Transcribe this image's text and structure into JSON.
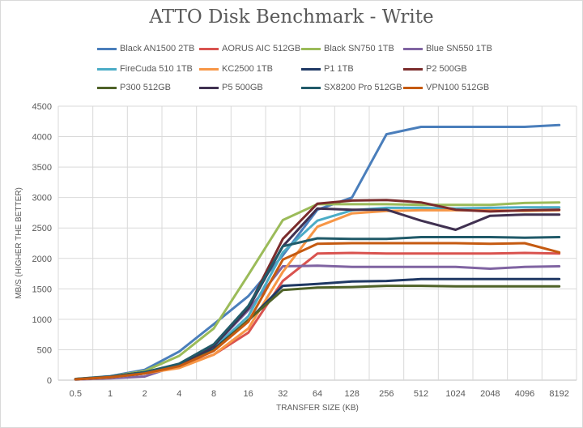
{
  "chart_data": {
    "type": "line",
    "title": "ATTO Disk Benchmark - Write",
    "xlabel": "TRANSFER SIZE (KB)",
    "ylabel": "MB/S (HIGHER THE BETTER)",
    "ylim": [
      0,
      4500
    ],
    "yticks": [
      "0",
      "500",
      "1000",
      "1500",
      "2000",
      "2500",
      "3000",
      "3500",
      "4000",
      "4500"
    ],
    "grid": true,
    "legend_position": "top",
    "categories": [
      "0.5",
      "1",
      "2",
      "4",
      "8",
      "16",
      "32",
      "64",
      "128",
      "256",
      "512",
      "1024",
      "2048",
      "4096",
      "8192"
    ],
    "series": [
      {
        "name": "Black AN1500 2TB",
        "color": "#4a7ebb",
        "values": [
          20,
          65,
          170,
          470,
          920,
          1380,
          2050,
          2800,
          3000,
          4040,
          4160,
          4160,
          4160,
          4160,
          4190
        ]
      },
      {
        "name": "AORUS AIC 512GB",
        "color": "#d9534f",
        "values": [
          15,
          50,
          110,
          220,
          420,
          780,
          1630,
          2080,
          2090,
          2080,
          2080,
          2080,
          2080,
          2090,
          2080
        ]
      },
      {
        "name": "Black SN750 1TB",
        "color": "#9bbb59",
        "values": [
          20,
          60,
          150,
          400,
          850,
          1730,
          2630,
          2890,
          2890,
          2890,
          2880,
          2880,
          2880,
          2910,
          2920
        ]
      },
      {
        "name": "Blue SN550 1TB",
        "color": "#8064a2",
        "values": [
          10,
          30,
          60,
          250,
          560,
          1150,
          1870,
          1880,
          1860,
          1860,
          1860,
          1860,
          1830,
          1860,
          1870
        ]
      },
      {
        "name": "FireCuda 510 1TB",
        "color": "#4bacc6",
        "values": [
          15,
          55,
          130,
          250,
          530,
          1050,
          2100,
          2620,
          2790,
          2830,
          2830,
          2820,
          2830,
          2840,
          2840
        ]
      },
      {
        "name": "KC2500 1TB",
        "color": "#f79646",
        "values": [
          12,
          45,
          110,
          200,
          420,
          850,
          1780,
          2520,
          2740,
          2780,
          2790,
          2790,
          2790,
          2780,
          2790
        ]
      },
      {
        "name": "P1 1TB",
        "color": "#1f3864",
        "values": [
          18,
          60,
          130,
          250,
          510,
          980,
          1550,
          1580,
          1620,
          1630,
          1660,
          1660,
          1660,
          1660,
          1660
        ]
      },
      {
        "name": "P2 500GB",
        "color": "#7b2c2c",
        "values": [
          15,
          55,
          130,
          260,
          560,
          1200,
          2320,
          2900,
          2950,
          2960,
          2920,
          2800,
          2770,
          2790,
          2800
        ]
      },
      {
        "name": "P300 512GB",
        "color": "#4f6228",
        "values": [
          15,
          55,
          120,
          240,
          490,
          990,
          1480,
          1520,
          1530,
          1550,
          1550,
          1540,
          1540,
          1540,
          1540
        ]
      },
      {
        "name": "P5 500GB",
        "color": "#403151",
        "values": [
          15,
          50,
          110,
          250,
          560,
          1180,
          2200,
          2820,
          2800,
          2800,
          2620,
          2470,
          2700,
          2720,
          2720
        ]
      },
      {
        "name": "SX8200 Pro 512GB",
        "color": "#215a69",
        "values": [
          18,
          60,
          130,
          270,
          590,
          1220,
          2200,
          2330,
          2320,
          2320,
          2350,
          2350,
          2350,
          2340,
          2350
        ]
      },
      {
        "name": "VPN100 512GB",
        "color": "#c55a11",
        "values": [
          15,
          50,
          110,
          230,
          480,
          960,
          1980,
          2240,
          2250,
          2250,
          2250,
          2250,
          2240,
          2250,
          2100
        ]
      }
    ]
  }
}
